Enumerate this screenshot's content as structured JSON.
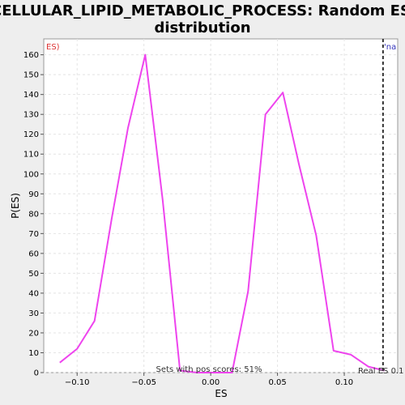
{
  "chart_data": {
    "type": "line",
    "title_lines": [
      "CELLULAR_LIPID_METABOLIC_PROCESS: Random ES",
      "distribution"
    ],
    "xlabel": "ES",
    "ylabel": "P(ES)",
    "xlim": [
      -0.125,
      0.14
    ],
    "ylim": [
      0,
      168
    ],
    "xticks": [
      -0.1,
      -0.05,
      0.0,
      0.05,
      0.1
    ],
    "xtick_labels": [
      "−0.10",
      "−0.05",
      "0.00",
      "0.05",
      "0.10"
    ],
    "yticks": [
      0,
      10,
      20,
      30,
      40,
      50,
      60,
      70,
      80,
      90,
      100,
      110,
      120,
      130,
      140,
      150,
      160
    ],
    "grid": true,
    "series": [
      {
        "color": "#ee44ee",
        "x": [
          -0.113,
          -0.1,
          -0.087,
          -0.074,
          -0.062,
          -0.049,
          -0.036,
          -0.023,
          -0.01,
          0.003,
          0.016,
          0.028,
          0.041,
          0.054,
          0.066,
          0.079,
          0.092,
          0.105,
          0.118,
          0.13
        ],
        "y": [
          5,
          12,
          26,
          78,
          123,
          160,
          87,
          1,
          0,
          0,
          0,
          41,
          130,
          141,
          105,
          69,
          11,
          9,
          3,
          1
        ]
      }
    ],
    "real_es_line": {
      "x": 0.129,
      "color": "#333333"
    },
    "annotations": {
      "left_corner_text": "ES)",
      "left_corner_color": "#dd3333",
      "right_corner_text": "'na",
      "right_corner_color": "#3333bb",
      "bottom_center_text": "Sets with pos scores: 51%",
      "bottom_right_text": "Real ES 0.1"
    }
  }
}
